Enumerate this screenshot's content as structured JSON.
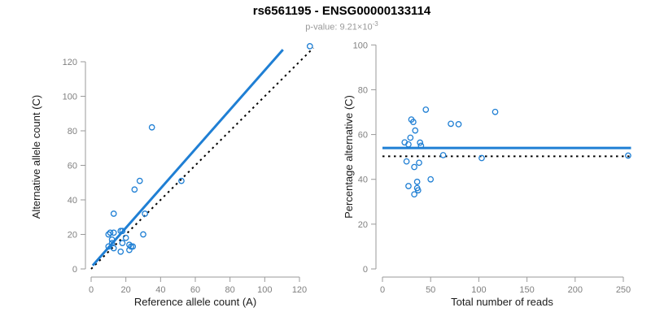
{
  "title": "rs6561195 - ENSG00000133114",
  "subtitle": {
    "text": "p-value: 9.21×10",
    "exponent": "-3"
  },
  "colors": {
    "accent_blue": "#1F7FD4",
    "reference_black": "#000000",
    "axis_gray": "#9a9a9a",
    "tick_label_gray": "#808080",
    "subtitle_gray": "#999999"
  },
  "chart_data": [
    {
      "type": "scatter",
      "title": "",
      "xlabel": "Reference allele count (A)",
      "ylabel": "Alternative allele count (C)",
      "xlim": [
        0,
        128
      ],
      "ylim": [
        0,
        132
      ],
      "xticks": [
        0,
        20,
        40,
        60,
        80,
        100,
        120
      ],
      "yticks": [
        0,
        20,
        40,
        60,
        80,
        100,
        120
      ],
      "grid": false,
      "legend": "none",
      "points": [
        [
          10,
          20
        ],
        [
          11,
          21
        ],
        [
          13,
          21
        ],
        [
          17,
          22
        ],
        [
          18,
          22
        ],
        [
          12,
          17
        ],
        [
          12,
          15
        ],
        [
          20,
          18
        ],
        [
          30,
          20
        ],
        [
          13,
          32
        ],
        [
          31,
          32
        ],
        [
          18,
          15
        ],
        [
          22,
          14
        ],
        [
          23,
          13
        ],
        [
          24,
          13
        ],
        [
          10,
          13
        ],
        [
          13,
          12
        ],
        [
          17,
          10
        ],
        [
          22,
          11
        ],
        [
          25,
          46
        ],
        [
          28,
          51
        ],
        [
          35,
          82
        ],
        [
          52,
          51
        ],
        [
          126,
          129
        ]
      ],
      "regression_line": {
        "x1": 0.9,
        "y1": 2.0,
        "x2": 110.5,
        "y2": 127.0,
        "style": "solid",
        "width": 3
      },
      "identity_line": {
        "x1": 0,
        "y1": 0,
        "x2": 128,
        "y2": 128,
        "style": "dotted",
        "width": 2
      }
    },
    {
      "type": "scatter",
      "title": "",
      "xlabel": "Total number of reads",
      "ylabel": "Percentage alternative (C)",
      "xlim": [
        0,
        258
      ],
      "ylim": [
        0,
        100
      ],
      "xticks": [
        0,
        50,
        100,
        150,
        200,
        250
      ],
      "yticks": [
        0,
        20,
        40,
        60,
        80,
        100
      ],
      "grid": false,
      "legend": "none",
      "points": [
        [
          30,
          66.7
        ],
        [
          32,
          65.6
        ],
        [
          34,
          61.8
        ],
        [
          39,
          56.4
        ],
        [
          40,
          55.0
        ],
        [
          29,
          58.6
        ],
        [
          27,
          55.6
        ],
        [
          38,
          47.4
        ],
        [
          50,
          40.0
        ],
        [
          45,
          71.1
        ],
        [
          63,
          50.8
        ],
        [
          33,
          45.5
        ],
        [
          36,
          38.9
        ],
        [
          36,
          36.1
        ],
        [
          37,
          35.1
        ],
        [
          23,
          56.5
        ],
        [
          25,
          48.0
        ],
        [
          27,
          37.0
        ],
        [
          33,
          33.3
        ],
        [
          71,
          64.8
        ],
        [
          79,
          64.6
        ],
        [
          117,
          70.1
        ],
        [
          103,
          49.5
        ],
        [
          255,
          50.6
        ]
      ],
      "mean_line": {
        "y": 54,
        "x1": 0,
        "x2": 258,
        "style": "solid",
        "width": 3
      },
      "reference_line": {
        "y": 50.3,
        "x1": 0,
        "x2": 258,
        "style": "dotted",
        "width": 2
      }
    }
  ]
}
